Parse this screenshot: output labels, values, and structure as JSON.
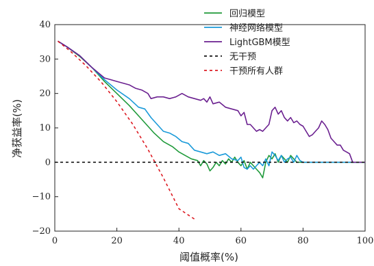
{
  "chart_data": {
    "type": "line",
    "xlabel": "阈值概率(%)",
    "ylabel": "净获益率(%)",
    "xlim": [
      0,
      100
    ],
    "ylim": [
      -20,
      40
    ],
    "x_ticks": [
      "0",
      "20",
      "40",
      "60",
      "80",
      "100"
    ],
    "y_ticks": [
      "40",
      "30",
      "20",
      "10",
      "0",
      "−10",
      "−20"
    ],
    "legend_position": "top-right",
    "grid": false,
    "series": [
      {
        "name": "回归模型",
        "color": "#1f9a3a",
        "style": "solid",
        "points": [
          [
            1,
            35.2
          ],
          [
            4,
            33.5
          ],
          [
            8,
            30.8
          ],
          [
            12,
            27.5
          ],
          [
            16,
            23.5
          ],
          [
            20,
            20
          ],
          [
            24,
            16.5
          ],
          [
            28,
            12.5
          ],
          [
            32,
            8.5
          ],
          [
            35,
            6
          ],
          [
            38,
            4.5
          ],
          [
            40,
            3
          ],
          [
            42,
            2
          ],
          [
            44,
            1
          ],
          [
            46,
            0.5
          ],
          [
            47,
            -1
          ],
          [
            48,
            0.5
          ],
          [
            49,
            -0.5
          ],
          [
            50,
            -2.5
          ],
          [
            51,
            -1.5
          ],
          [
            52,
            0
          ],
          [
            53,
            -1
          ],
          [
            54,
            0.5
          ],
          [
            55,
            -0.5
          ],
          [
            56,
            1
          ],
          [
            57,
            0
          ],
          [
            58,
            1.5
          ],
          [
            59,
            0
          ],
          [
            60,
            -1
          ],
          [
            61,
            0.5
          ],
          [
            62,
            -2
          ],
          [
            63,
            0
          ],
          [
            64,
            -1
          ],
          [
            65,
            -2
          ],
          [
            66,
            -3
          ],
          [
            67,
            -4.5
          ],
          [
            68,
            0
          ],
          [
            69,
            2
          ],
          [
            70,
            1
          ],
          [
            71,
            2.5
          ],
          [
            72,
            0
          ],
          [
            73,
            2
          ],
          [
            74,
            1
          ],
          [
            75,
            0
          ],
          [
            76,
            2
          ],
          [
            77,
            1
          ],
          [
            78,
            0
          ],
          [
            80,
            0
          ],
          [
            90,
            0
          ],
          [
            100,
            0
          ]
        ]
      },
      {
        "name": "神经网络模型",
        "color": "#1a9ad9",
        "style": "solid",
        "points": [
          [
            1,
            35.2
          ],
          [
            4,
            33.5
          ],
          [
            8,
            31
          ],
          [
            12,
            27.5
          ],
          [
            16,
            24
          ],
          [
            20,
            21
          ],
          [
            24,
            18.5
          ],
          [
            27,
            16
          ],
          [
            29,
            15.5
          ],
          [
            31,
            13
          ],
          [
            33,
            11
          ],
          [
            35,
            9
          ],
          [
            37,
            8.5
          ],
          [
            39,
            7.5
          ],
          [
            41,
            6
          ],
          [
            43,
            5.5
          ],
          [
            45,
            3.5
          ],
          [
            47,
            3
          ],
          [
            49,
            2.5
          ],
          [
            51,
            3
          ],
          [
            53,
            2
          ],
          [
            55,
            2.5
          ],
          [
            57,
            1
          ],
          [
            59,
            0.5
          ],
          [
            60,
            1.5
          ],
          [
            61,
            -1.5
          ],
          [
            62,
            -2
          ],
          [
            63,
            -1
          ],
          [
            64,
            -2
          ],
          [
            65,
            -1
          ],
          [
            66,
            0
          ],
          [
            67,
            -1
          ],
          [
            68,
            1
          ],
          [
            69,
            -1
          ],
          [
            70,
            3
          ],
          [
            71,
            2
          ],
          [
            72,
            0.5
          ],
          [
            73,
            2
          ],
          [
            74,
            0
          ],
          [
            75,
            1
          ],
          [
            76,
            1.5
          ],
          [
            77,
            0
          ],
          [
            78,
            2
          ],
          [
            79,
            0.5
          ],
          [
            80,
            0
          ],
          [
            82,
            0
          ],
          [
            90,
            0
          ],
          [
            100,
            0
          ]
        ]
      },
      {
        "name": "LightGBM模型",
        "color": "#6a1f8f",
        "style": "solid",
        "points": [
          [
            1,
            35.2
          ],
          [
            4,
            33.5
          ],
          [
            8,
            31
          ],
          [
            12,
            27.5
          ],
          [
            16,
            24.5
          ],
          [
            18,
            24
          ],
          [
            20,
            23.5
          ],
          [
            22,
            23
          ],
          [
            24,
            22.5
          ],
          [
            26,
            21.5
          ],
          [
            28,
            21
          ],
          [
            30,
            20
          ],
          [
            31,
            18.5
          ],
          [
            33,
            19
          ],
          [
            35,
            19
          ],
          [
            37,
            18.5
          ],
          [
            39,
            19
          ],
          [
            41,
            20
          ],
          [
            43,
            19
          ],
          [
            45,
            18.5
          ],
          [
            47,
            18
          ],
          [
            48,
            18.5
          ],
          [
            49,
            17.5
          ],
          [
            50,
            19
          ],
          [
            51,
            17
          ],
          [
            53,
            17.5
          ],
          [
            55,
            16
          ],
          [
            57,
            15.5
          ],
          [
            59,
            15
          ],
          [
            60,
            13.5
          ],
          [
            61,
            14.5
          ],
          [
            62,
            11
          ],
          [
            63,
            11
          ],
          [
            64,
            10
          ],
          [
            65,
            9
          ],
          [
            66,
            9.5
          ],
          [
            67,
            9
          ],
          [
            68,
            10
          ],
          [
            69,
            11
          ],
          [
            70,
            15
          ],
          [
            71,
            16
          ],
          [
            72,
            14
          ],
          [
            73,
            15
          ],
          [
            74,
            13
          ],
          [
            75,
            12
          ],
          [
            76,
            13
          ],
          [
            77,
            11.5
          ],
          [
            78,
            12
          ],
          [
            79,
            11
          ],
          [
            80,
            10.5
          ],
          [
            81,
            9
          ],
          [
            82,
            7.5
          ],
          [
            83,
            8
          ],
          [
            84,
            9
          ],
          [
            85,
            10
          ],
          [
            86,
            12
          ],
          [
            87,
            11
          ],
          [
            88,
            9.5
          ],
          [
            89,
            7
          ],
          [
            90,
            6
          ],
          [
            91,
            5
          ],
          [
            92,
            5
          ],
          [
            93,
            3.5
          ],
          [
            94,
            3
          ],
          [
            95,
            2.5
          ],
          [
            96,
            0
          ],
          [
            97,
            0
          ],
          [
            100,
            0
          ]
        ]
      },
      {
        "name": "无干预",
        "color": "#111111",
        "style": "dashed",
        "points": [
          [
            0,
            0
          ],
          [
            100,
            0
          ]
        ]
      },
      {
        "name": "干预所有人群",
        "color": "#dd1a22",
        "style": "dashed",
        "points": [
          [
            1,
            35.2
          ],
          [
            5,
            32.3
          ],
          [
            10,
            28.1
          ],
          [
            15,
            23.3
          ],
          [
            20,
            17.6
          ],
          [
            25,
            11.2
          ],
          [
            30,
            3.8
          ],
          [
            35,
            -4.5
          ],
          [
            40,
            -13.5
          ],
          [
            45,
            -16.5
          ]
        ]
      }
    ]
  }
}
